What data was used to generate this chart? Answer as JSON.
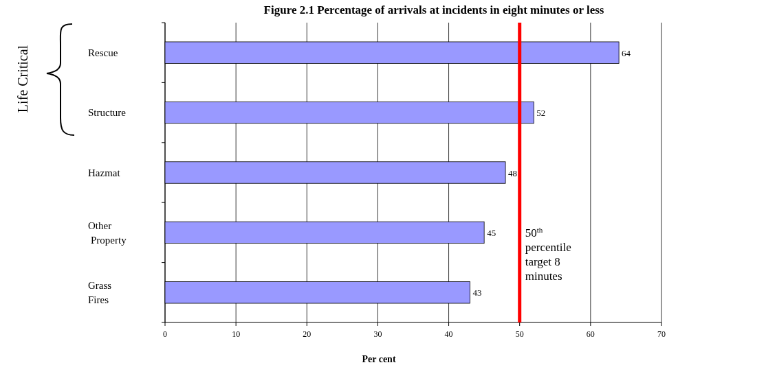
{
  "chart_data": {
    "type": "bar",
    "orientation": "horizontal",
    "title": "Figure 2.1 Percentage of arrivals at incidents in eight minutes or less",
    "xlabel": "Per cent",
    "categories": [
      "Rescue",
      "Structure",
      "Hazmat",
      "Other Property",
      "Grass Fires"
    ],
    "values": [
      64,
      52,
      48,
      45,
      43
    ],
    "color": "#9999ff",
    "data_labels": true,
    "xlim": [
      0,
      70
    ],
    "xticks": [
      0,
      10,
      20,
      30,
      40,
      50,
      60,
      70
    ],
    "grid": "x",
    "ref_lines": [
      {
        "axis": "x",
        "value": 50,
        "label": "50$^{th}$ percentile target 8 minutes",
        "color": "#ff0000"
      }
    ],
    "annotations": [
      "Life Critical"
    ]
  }
}
